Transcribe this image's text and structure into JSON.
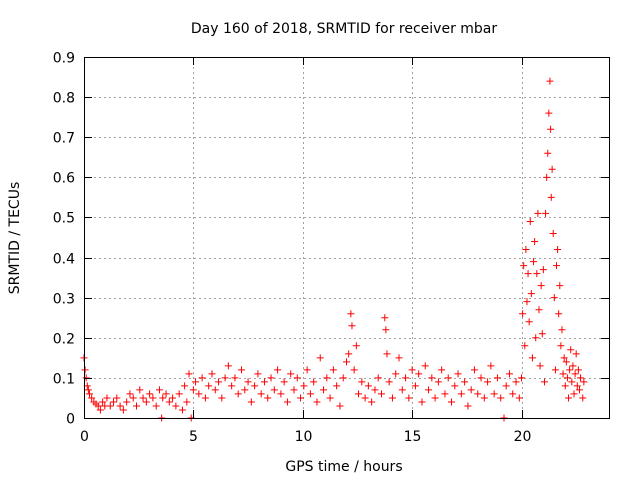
{
  "chart_data": {
    "type": "scatter",
    "title": "Day 160 of 2018, SRMTID for receiver mbar",
    "xlabel": "GPS time / hours",
    "ylabel": "SRMTID / TECUs",
    "xlim": [
      0,
      24
    ],
    "ylim": [
      0,
      0.9
    ],
    "xticks": [
      0,
      5,
      10,
      15,
      20
    ],
    "xtick_labels": [
      "0",
      "5",
      "10",
      "15",
      "20"
    ],
    "yticks": [
      0,
      0.1,
      0.2,
      0.3,
      0.4,
      0.5,
      0.6,
      0.7,
      0.8,
      0.9
    ],
    "ytick_labels": [
      "0",
      "0.1",
      "0.2",
      "0.3",
      "0.4",
      "0.5",
      "0.6",
      "0.7",
      "0.8",
      "0.9"
    ],
    "grid": true,
    "marker": "+",
    "series_color": "#ff0000",
    "series": [
      {
        "name": "SRMTID",
        "points": [
          [
            0.0,
            0.15
          ],
          [
            0.05,
            0.12
          ],
          [
            0.1,
            0.1
          ],
          [
            0.15,
            0.08
          ],
          [
            0.2,
            0.07
          ],
          [
            0.25,
            0.06
          ],
          [
            0.35,
            0.05
          ],
          [
            0.45,
            0.04
          ],
          [
            0.55,
            0.035
          ],
          [
            0.65,
            0.03
          ],
          [
            0.75,
            0.02
          ],
          [
            0.85,
            0.04
          ],
          [
            0.95,
            0.03
          ],
          [
            1.05,
            0.05
          ],
          [
            1.2,
            0.03
          ],
          [
            1.35,
            0.04
          ],
          [
            1.5,
            0.05
          ],
          [
            1.65,
            0.03
          ],
          [
            1.8,
            0.02
          ],
          [
            1.95,
            0.04
          ],
          [
            2.1,
            0.06
          ],
          [
            2.25,
            0.05
          ],
          [
            2.4,
            0.03
          ],
          [
            2.55,
            0.07
          ],
          [
            2.7,
            0.05
          ],
          [
            2.85,
            0.04
          ],
          [
            3.0,
            0.06
          ],
          [
            3.15,
            0.05
          ],
          [
            3.3,
            0.03
          ],
          [
            3.45,
            0.07
          ],
          [
            3.55,
            0.0
          ],
          [
            3.6,
            0.05
          ],
          [
            3.75,
            0.06
          ],
          [
            3.9,
            0.04
          ],
          [
            4.05,
            0.05
          ],
          [
            4.2,
            0.03
          ],
          [
            4.35,
            0.06
          ],
          [
            4.5,
            0.02
          ],
          [
            4.6,
            0.08
          ],
          [
            4.7,
            0.04
          ],
          [
            4.8,
            0.11
          ],
          [
            4.9,
            0.0
          ],
          [
            5.0,
            0.07
          ],
          [
            5.1,
            0.09
          ],
          [
            5.25,
            0.06
          ],
          [
            5.4,
            0.1
          ],
          [
            5.55,
            0.05
          ],
          [
            5.7,
            0.08
          ],
          [
            5.85,
            0.11
          ],
          [
            6.0,
            0.07
          ],
          [
            6.15,
            0.09
          ],
          [
            6.3,
            0.05
          ],
          [
            6.45,
            0.1
          ],
          [
            6.6,
            0.13
          ],
          [
            6.75,
            0.08
          ],
          [
            6.9,
            0.1
          ],
          [
            7.05,
            0.06
          ],
          [
            7.2,
            0.12
          ],
          [
            7.35,
            0.07
          ],
          [
            7.5,
            0.09
          ],
          [
            7.65,
            0.04
          ],
          [
            7.8,
            0.08
          ],
          [
            7.95,
            0.11
          ],
          [
            8.1,
            0.06
          ],
          [
            8.25,
            0.09
          ],
          [
            8.4,
            0.05
          ],
          [
            8.55,
            0.1
          ],
          [
            8.7,
            0.07
          ],
          [
            8.85,
            0.12
          ],
          [
            9.0,
            0.06
          ],
          [
            9.15,
            0.09
          ],
          [
            9.3,
            0.04
          ],
          [
            9.45,
            0.11
          ],
          [
            9.6,
            0.07
          ],
          [
            9.75,
            0.1
          ],
          [
            9.9,
            0.05
          ],
          [
            10.05,
            0.08
          ],
          [
            10.2,
            0.12
          ],
          [
            10.35,
            0.06
          ],
          [
            10.5,
            0.09
          ],
          [
            10.65,
            0.04
          ],
          [
            10.8,
            0.15
          ],
          [
            10.95,
            0.07
          ],
          [
            11.1,
            0.1
          ],
          [
            11.25,
            0.05
          ],
          [
            11.4,
            0.12
          ],
          [
            11.55,
            0.08
          ],
          [
            11.7,
            0.03
          ],
          [
            11.85,
            0.1
          ],
          [
            12.0,
            0.14
          ],
          [
            12.1,
            0.16
          ],
          [
            12.2,
            0.26
          ],
          [
            12.25,
            0.23
          ],
          [
            12.35,
            0.12
          ],
          [
            12.45,
            0.18
          ],
          [
            12.55,
            0.06
          ],
          [
            12.7,
            0.09
          ],
          [
            12.85,
            0.05
          ],
          [
            13.0,
            0.08
          ],
          [
            13.15,
            0.04
          ],
          [
            13.3,
            0.07
          ],
          [
            13.45,
            0.1
          ],
          [
            13.6,
            0.06
          ],
          [
            13.75,
            0.25
          ],
          [
            13.8,
            0.22
          ],
          [
            13.85,
            0.16
          ],
          [
            13.95,
            0.09
          ],
          [
            14.1,
            0.05
          ],
          [
            14.25,
            0.11
          ],
          [
            14.4,
            0.15
          ],
          [
            14.55,
            0.07
          ],
          [
            14.7,
            0.1
          ],
          [
            14.85,
            0.05
          ],
          [
            15.0,
            0.12
          ],
          [
            15.15,
            0.08
          ],
          [
            15.3,
            0.11
          ],
          [
            15.45,
            0.04
          ],
          [
            15.6,
            0.13
          ],
          [
            15.75,
            0.07
          ],
          [
            15.9,
            0.1
          ],
          [
            16.05,
            0.05
          ],
          [
            16.2,
            0.09
          ],
          [
            16.35,
            0.12
          ],
          [
            16.5,
            0.06
          ],
          [
            16.65,
            0.1
          ],
          [
            16.8,
            0.04
          ],
          [
            16.95,
            0.08
          ],
          [
            17.1,
            0.11
          ],
          [
            17.25,
            0.06
          ],
          [
            17.4,
            0.09
          ],
          [
            17.55,
            0.03
          ],
          [
            17.7,
            0.07
          ],
          [
            17.85,
            0.12
          ],
          [
            18.0,
            0.06
          ],
          [
            18.15,
            0.1
          ],
          [
            18.3,
            0.05
          ],
          [
            18.45,
            0.09
          ],
          [
            18.6,
            0.13
          ],
          [
            18.75,
            0.06
          ],
          [
            18.9,
            0.1
          ],
          [
            19.05,
            0.05
          ],
          [
            19.2,
            0.0
          ],
          [
            19.3,
            0.08
          ],
          [
            19.45,
            0.11
          ],
          [
            19.6,
            0.06
          ],
          [
            19.75,
            0.09
          ],
          [
            19.9,
            0.05
          ],
          [
            20.0,
            0.1
          ],
          [
            20.05,
            0.26
          ],
          [
            20.1,
            0.38
          ],
          [
            20.15,
            0.18
          ],
          [
            20.2,
            0.42
          ],
          [
            20.25,
            0.29
          ],
          [
            20.3,
            0.36
          ],
          [
            20.35,
            0.24
          ],
          [
            20.4,
            0.49
          ],
          [
            20.45,
            0.31
          ],
          [
            20.5,
            0.15
          ],
          [
            20.55,
            0.39
          ],
          [
            20.6,
            0.44
          ],
          [
            20.65,
            0.2
          ],
          [
            20.7,
            0.36
          ],
          [
            20.75,
            0.51
          ],
          [
            20.8,
            0.27
          ],
          [
            20.85,
            0.13
          ],
          [
            20.9,
            0.33
          ],
          [
            20.95,
            0.21
          ],
          [
            21.0,
            0.37
          ],
          [
            21.05,
            0.09
          ],
          [
            21.1,
            0.51
          ],
          [
            21.15,
            0.6
          ],
          [
            21.2,
            0.66
          ],
          [
            21.25,
            0.76
          ],
          [
            21.3,
            0.84
          ],
          [
            21.33,
            0.72
          ],
          [
            21.36,
            0.55
          ],
          [
            21.4,
            0.62
          ],
          [
            21.45,
            0.46
          ],
          [
            21.5,
            0.3
          ],
          [
            21.55,
            0.12
          ],
          [
            21.6,
            0.38
          ],
          [
            21.65,
            0.42
          ],
          [
            21.7,
            0.26
          ],
          [
            21.75,
            0.33
          ],
          [
            21.8,
            0.18
          ],
          [
            21.85,
            0.22
          ],
          [
            21.9,
            0.11
          ],
          [
            21.95,
            0.15
          ],
          [
            22.0,
            0.08
          ],
          [
            22.05,
            0.14
          ],
          [
            22.1,
            0.1
          ],
          [
            22.15,
            0.05
          ],
          [
            22.2,
            0.12
          ],
          [
            22.25,
            0.17
          ],
          [
            22.3,
            0.09
          ],
          [
            22.35,
            0.13
          ],
          [
            22.4,
            0.06
          ],
          [
            22.45,
            0.11
          ],
          [
            22.5,
            0.16
          ],
          [
            22.55,
            0.08
          ],
          [
            22.6,
            0.12
          ],
          [
            22.65,
            0.07
          ],
          [
            22.7,
            0.1
          ],
          [
            22.8,
            0.05
          ],
          [
            22.85,
            0.09
          ]
        ]
      }
    ]
  }
}
